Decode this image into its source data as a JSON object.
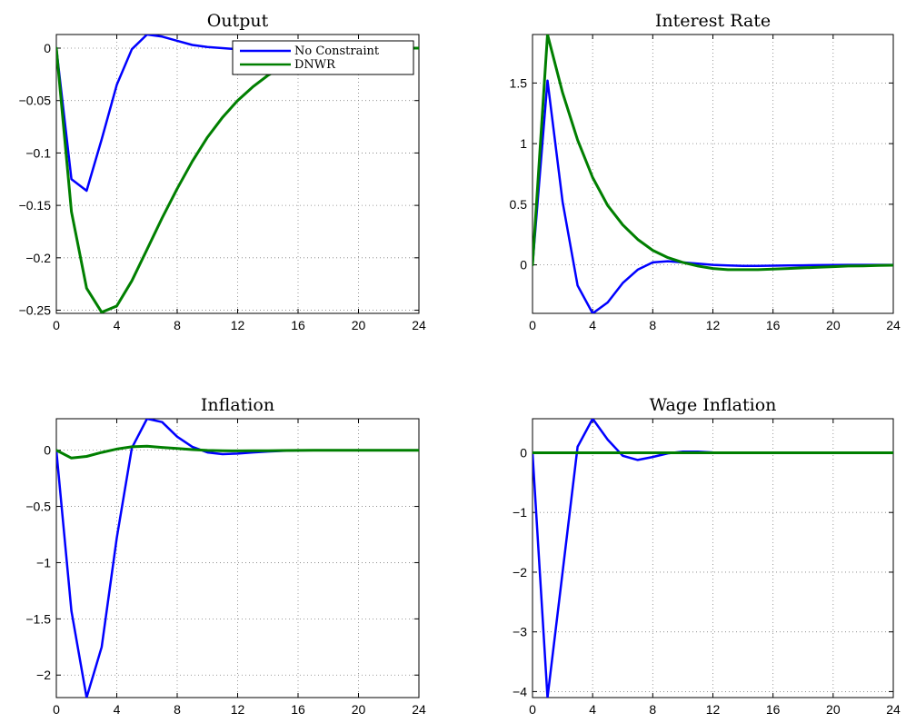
{
  "chart_data": [
    {
      "type": "line",
      "title": "Output",
      "xlim": [
        0,
        24
      ],
      "ylim": [
        -0.253,
        0.013
      ],
      "xticks": [
        0,
        4,
        8,
        12,
        16,
        20,
        24
      ],
      "yticks": [
        0,
        -0.05,
        -0.1,
        -0.15,
        -0.2,
        -0.25
      ],
      "ytick_labels": [
        "0",
        "−0.05",
        "−0.1",
        "−0.15",
        "−0.2",
        "−0.25"
      ],
      "grid": true,
      "legend": {
        "placement": "top-right"
      },
      "series": [
        {
          "name": "No Constraint",
          "color": "#0000ff",
          "values": [
            0,
            -0.125,
            -0.136,
            -0.087,
            -0.035,
            -0.001,
            0.013,
            0.011,
            0.007,
            0.003,
            0.001,
            0,
            -0.001,
            -0.001,
            -0.001,
            -0.001,
            -0.001,
            0,
            0,
            0,
            0,
            0,
            0,
            0,
            0
          ]
        },
        {
          "name": "DNWR",
          "color": "#007f00",
          "values": [
            0,
            -0.156,
            -0.229,
            -0.252,
            -0.246,
            -0.222,
            -0.192,
            -0.162,
            -0.134,
            -0.108,
            -0.085,
            -0.066,
            -0.05,
            -0.037,
            -0.026,
            -0.018,
            -0.012,
            -0.007,
            -0.004,
            -0.002,
            -0.001,
            0,
            0,
            0,
            0
          ]
        }
      ]
    },
    {
      "type": "line",
      "title": "Interest Rate",
      "xlim": [
        0,
        24
      ],
      "ylim": [
        -0.4,
        1.9
      ],
      "xticks": [
        0,
        4,
        8,
        12,
        16,
        20,
        24
      ],
      "yticks": [
        0,
        0.5,
        1,
        1.5
      ],
      "ytick_labels": [
        "0",
        "0.5",
        "1",
        "1.5"
      ],
      "grid": true,
      "series": [
        {
          "name": "No Constraint",
          "color": "#0000ff",
          "values": [
            0,
            1.52,
            0.52,
            -0.17,
            -0.4,
            -0.31,
            -0.15,
            -0.04,
            0.02,
            0.03,
            0.02,
            0.01,
            0,
            -0.005,
            -0.008,
            -0.008,
            -0.007,
            -0.005,
            -0.004,
            -0.002,
            -0.001,
            0,
            0,
            0,
            0
          ]
        },
        {
          "name": "DNWR",
          "color": "#007f00",
          "values": [
            0,
            1.9,
            1.42,
            1.03,
            0.72,
            0.49,
            0.33,
            0.21,
            0.12,
            0.06,
            0.02,
            -0.01,
            -0.03,
            -0.04,
            -0.04,
            -0.04,
            -0.035,
            -0.03,
            -0.025,
            -0.02,
            -0.015,
            -0.01,
            -0.008,
            -0.005,
            -0.003
          ]
        }
      ]
    },
    {
      "type": "line",
      "title": "Inflation",
      "xlim": [
        0,
        24
      ],
      "ylim": [
        -2.2,
        0.28
      ],
      "xticks": [
        0,
        4,
        8,
        12,
        16,
        20,
        24
      ],
      "yticks": [
        0,
        -0.5,
        -1,
        -1.5,
        -2
      ],
      "ytick_labels": [
        "0",
        "−0.5",
        "−1",
        "−1.5",
        "−2"
      ],
      "grid": true,
      "series": [
        {
          "name": "No Constraint",
          "color": "#0000ff",
          "values": [
            0,
            -1.43,
            -2.2,
            -1.75,
            -0.78,
            0.02,
            0.28,
            0.25,
            0.12,
            0.03,
            -0.02,
            -0.035,
            -0.03,
            -0.02,
            -0.012,
            -0.006,
            -0.002,
            0,
            0,
            0,
            0,
            0,
            0,
            0,
            0
          ]
        },
        {
          "name": "DNWR",
          "color": "#007f00",
          "values": [
            0,
            -0.07,
            -0.055,
            -0.02,
            0.01,
            0.03,
            0.035,
            0.025,
            0.015,
            0.005,
            -0.002,
            -0.005,
            -0.006,
            -0.005,
            -0.004,
            -0.003,
            -0.002,
            -0.001,
            0,
            0,
            0,
            0,
            0,
            0,
            0
          ]
        }
      ]
    },
    {
      "type": "line",
      "title": "Wage Inflation",
      "xlim": [
        0,
        24
      ],
      "ylim": [
        -4.1,
        0.57
      ],
      "xticks": [
        0,
        4,
        8,
        12,
        16,
        20,
        24
      ],
      "yticks": [
        0,
        -1,
        -2,
        -3,
        -4
      ],
      "ytick_labels": [
        "0",
        "−1",
        "−2",
        "−3",
        "−4"
      ],
      "grid": true,
      "series": [
        {
          "name": "No Constraint",
          "color": "#0000ff",
          "values": [
            0,
            -4.1,
            -2.0,
            0.1,
            0.57,
            0.22,
            -0.05,
            -0.12,
            -0.07,
            -0.01,
            0.02,
            0.02,
            0.005,
            0,
            -0.005,
            -0.005,
            -0.003,
            -0.002,
            -0.001,
            0,
            0,
            0,
            0,
            0,
            0
          ]
        },
        {
          "name": "DNWR",
          "color": "#007f00",
          "values": [
            0,
            0,
            0,
            0,
            0,
            0,
            0,
            0,
            0,
            0,
            0,
            0,
            0,
            0,
            0,
            0,
            0,
            0,
            0,
            0,
            0,
            0,
            0,
            0,
            0
          ]
        }
      ]
    }
  ]
}
